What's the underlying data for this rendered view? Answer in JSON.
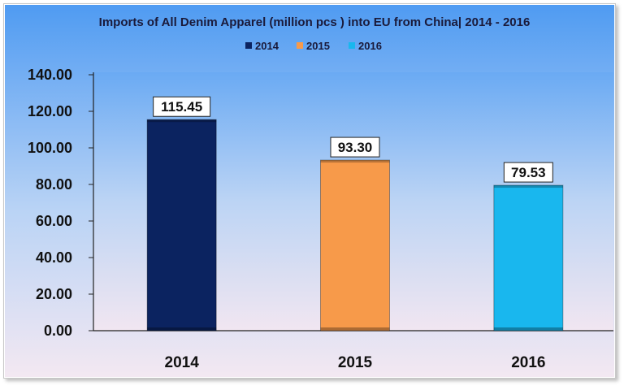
{
  "chart_data": {
    "type": "bar",
    "title": "Imports of All Denim Apparel (million pcs ) into EU from China| 2014 - 2016",
    "categories": [
      "2014",
      "2015",
      "2016"
    ],
    "series": [
      {
        "name": "2014",
        "values": [
          115.45,
          null,
          null
        ],
        "color": "#0b2360"
      },
      {
        "name": "2015",
        "values": [
          null,
          93.3,
          null
        ],
        "color": "#f79a4a"
      },
      {
        "name": "2016",
        "values": [
          null,
          null,
          79.53
        ],
        "color": "#19b7ee"
      }
    ],
    "values": [
      115.45,
      93.3,
      79.53
    ],
    "value_labels": [
      "115.45",
      "93.30",
      "79.53"
    ],
    "colors": [
      "#0b2360",
      "#f79a4a",
      "#19b7ee"
    ],
    "legend": [
      "2014",
      "2015",
      "2016"
    ],
    "legend_position": "top",
    "ylim": [
      0,
      140
    ],
    "yticks": [
      "0.00",
      "20.00",
      "40.00",
      "60.00",
      "80.00",
      "100.00",
      "120.00",
      "140.00"
    ],
    "grid": false,
    "xlabel": "",
    "ylabel": ""
  }
}
